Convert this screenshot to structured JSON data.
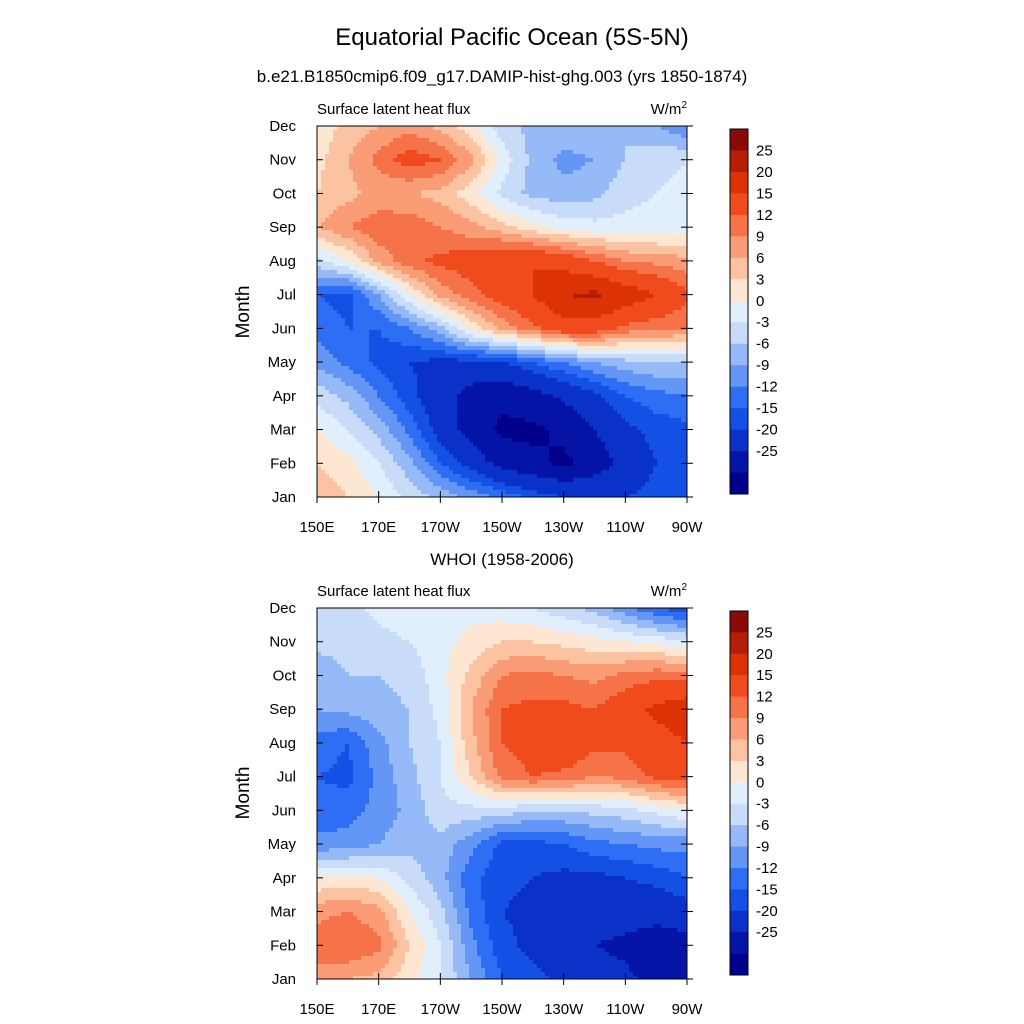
{
  "figure": {
    "title": "Equatorial Pacific Ocean (5S-5N)"
  },
  "chart_data": [
    {
      "type": "heatmap",
      "title": "b.e21.B1850cmip6.f09_g17.DAMIP-hist-ghg.003 (yrs 1850-1874)",
      "left_label": "Surface latent heat flux",
      "units": {
        "base": "W/m",
        "superscript": "2"
      },
      "ylabel": "Month",
      "xlabel": "",
      "x_ticks": [
        "150E",
        "170E",
        "170W",
        "150W",
        "130W",
        "110W",
        "90W"
      ],
      "x_values_deg_east": [
        150,
        170,
        190,
        210,
        230,
        250,
        270
      ],
      "y_ticks": [
        "Jan",
        "Feb",
        "Mar",
        "Apr",
        "May",
        "Jun",
        "Jul",
        "Aug",
        "Sep",
        "Oct",
        "Nov",
        "Dec"
      ],
      "xlim": [
        150,
        270
      ],
      "ylim": [
        1,
        12
      ],
      "colorbar_labels": [
        "25",
        "20",
        "15",
        "12",
        "9",
        "6",
        "3",
        "0",
        "-3",
        "-6",
        "-9",
        "-12",
        "-15",
        "-20",
        "-25"
      ],
      "grid_months": [
        "Jan",
        "Feb",
        "Mar",
        "Apr",
        "May",
        "Jun",
        "Jul",
        "Aug",
        "Sep",
        "Oct",
        "Nov",
        "Dec"
      ],
      "grid_lons": [
        150,
        160,
        170,
        180,
        190,
        200,
        210,
        220,
        230,
        240,
        250,
        260,
        270
      ],
      "values": [
        [
          8,
          6,
          3,
          -1,
          -4,
          -7,
          -10,
          -13,
          -15,
          -15,
          -15,
          -14,
          -13
        ],
        [
          6,
          4,
          0,
          -5,
          -12,
          -17,
          -22,
          -24,
          -26,
          -23,
          -18,
          -15,
          -13
        ],
        [
          3,
          0,
          -4,
          -10,
          -17,
          -22,
          -26,
          -26,
          -24,
          -20,
          -16,
          -14,
          -13
        ],
        [
          -1,
          -4,
          -9,
          -14,
          -18,
          -22,
          -24,
          -22,
          -19,
          -16,
          -12,
          -10,
          -9
        ],
        [
          -7,
          -10,
          -13,
          -15,
          -16,
          -16,
          -15,
          -12,
          -9,
          -6,
          -4,
          -3,
          -3
        ],
        [
          -10,
          -12,
          -12,
          -9,
          -4,
          4,
          10,
          14,
          18,
          18,
          14,
          13,
          12
        ],
        [
          -12,
          -13,
          -6,
          3,
          10,
          14,
          17,
          20,
          25,
          26,
          23,
          20,
          16
        ],
        [
          -1,
          3,
          10,
          14,
          16,
          17,
          20,
          20,
          18,
          15,
          12,
          11,
          10
        ],
        [
          9,
          12,
          14,
          14,
          12,
          10,
          7,
          4,
          2,
          1,
          1,
          1,
          1
        ],
        [
          6,
          8,
          10,
          9,
          8,
          4,
          -1,
          -4,
          -5,
          -4,
          -1,
          0,
          1
        ],
        [
          5,
          9,
          13,
          17,
          15,
          10,
          2,
          -4,
          -7,
          -6,
          -3,
          -1,
          0
        ],
        [
          4,
          7,
          9,
          11,
          8,
          4,
          -2,
          -4,
          -4,
          -3,
          -3,
          -6,
          -9
        ]
      ]
    },
    {
      "type": "heatmap",
      "title": "WHOI (1958-2006)",
      "left_label": "Surface latent heat flux",
      "units": {
        "base": "W/m",
        "superscript": "2"
      },
      "ylabel": "Month",
      "xlabel": "",
      "x_ticks": [
        "150E",
        "170E",
        "170W",
        "150W",
        "130W",
        "110W",
        "90W"
      ],
      "x_values_deg_east": [
        150,
        170,
        190,
        210,
        230,
        250,
        270
      ],
      "y_ticks": [
        "Jan",
        "Feb",
        "Mar",
        "Apr",
        "May",
        "Jun",
        "Jul",
        "Aug",
        "Sep",
        "Oct",
        "Nov",
        "Dec"
      ],
      "xlim": [
        150,
        270
      ],
      "ylim": [
        1,
        12
      ],
      "colorbar_labels": [
        "25",
        "20",
        "15",
        "12",
        "9",
        "6",
        "3",
        "0",
        "-3",
        "-6",
        "-9",
        "-12",
        "-15",
        "-20",
        "-25"
      ],
      "grid_months": [
        "Jan",
        "Feb",
        "Mar",
        "Apr",
        "May",
        "Jun",
        "Jul",
        "Aug",
        "Sep",
        "Oct",
        "Nov",
        "Dec"
      ],
      "grid_lons": [
        150,
        160,
        170,
        180,
        190,
        200,
        210,
        220,
        230,
        240,
        250,
        260,
        270
      ],
      "values": [
        [
          10,
          9,
          8,
          4,
          0,
          -6,
          -12,
          -14,
          -16,
          -18,
          -19,
          -22,
          -25
        ],
        [
          14,
          15,
          13,
          6,
          0,
          -8,
          -14,
          -16,
          -18,
          -20,
          -21,
          -23,
          -22
        ],
        [
          11,
          12,
          10,
          3,
          -2,
          -10,
          -15,
          -16,
          -17,
          -18,
          -18,
          -18,
          -17
        ],
        [
          3,
          4,
          3,
          -1,
          -5,
          -11,
          -14,
          -15,
          -16,
          -16,
          -15,
          -14,
          -12
        ],
        [
          -8,
          -8,
          -6,
          -4,
          -4,
          -8,
          -13,
          -13,
          -12,
          -10,
          -9,
          -8,
          -8
        ],
        [
          -11,
          -10,
          -8,
          -5,
          -1,
          -1,
          -1,
          -3,
          -3,
          -2,
          -1,
          1,
          3
        ],
        [
          -12,
          -13,
          -8,
          -4,
          0,
          6,
          13,
          15,
          14,
          12,
          13,
          16,
          17
        ],
        [
          -10,
          -12,
          -7,
          -3,
          0,
          8,
          15,
          17,
          19,
          16,
          16,
          18,
          20
        ],
        [
          -6,
          -5,
          -4,
          -3,
          1,
          9,
          15,
          16,
          16,
          15,
          18,
          21,
          23
        ],
        [
          -5,
          -3,
          -3,
          -2,
          2,
          7,
          12,
          13,
          12,
          11,
          13,
          14,
          14
        ],
        [
          -2,
          -2,
          -1,
          0,
          2,
          4,
          6,
          6,
          5,
          4,
          3,
          2,
          0
        ],
        [
          -1,
          -1,
          1,
          2,
          2,
          2,
          1,
          0,
          -2,
          -4,
          -8,
          -12,
          -14
        ]
      ]
    }
  ],
  "colorbar": {
    "colors": [
      "#00008b",
      "#0414a6",
      "#0a32c8",
      "#1450e6",
      "#2d6ef5",
      "#6496f5",
      "#96b9f8",
      "#c8dcfa",
      "#e1eefc",
      "#fde6d2",
      "#fcc3a3",
      "#fa9c76",
      "#f6734a",
      "#f04b1c",
      "#dc3206",
      "#b41e06",
      "#8b0a04"
    ]
  }
}
